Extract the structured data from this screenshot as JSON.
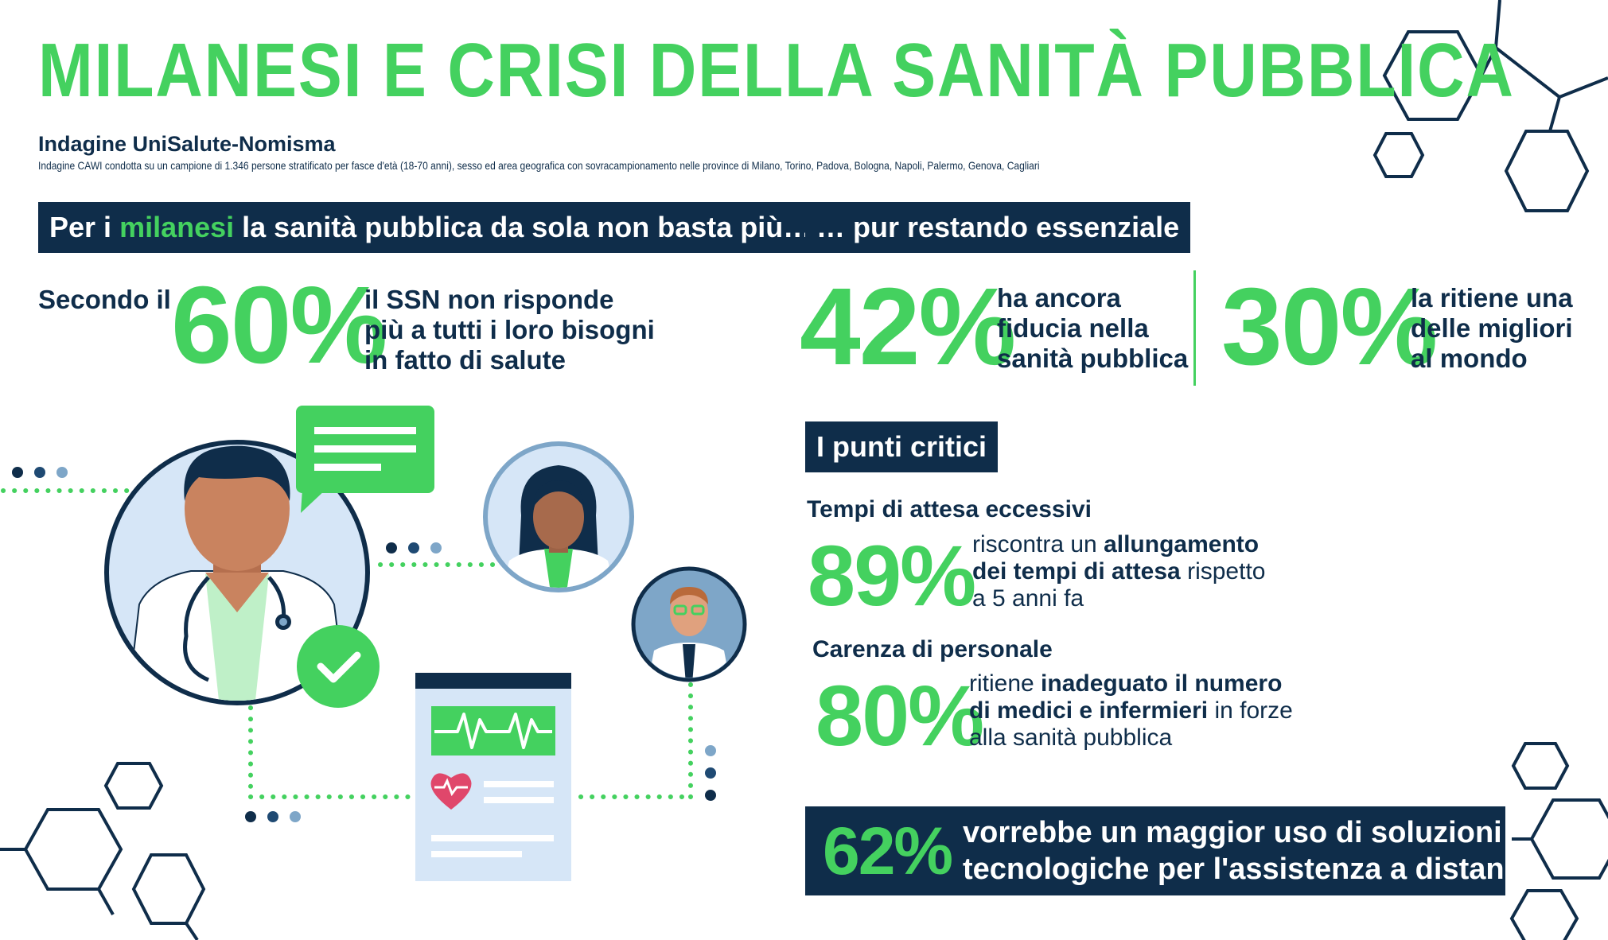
{
  "header": {
    "title": "MILANESI E CRISI DELLA SANITÀ PUBBLICA",
    "subtitle": "Indagine UniSalute-Nomisma",
    "methodology": "Indagine CAWI condotta su un campione di 1.346 persone stratificato per fasce d'età (18-70 anni), sesso ed area geografica con sovracampionamento nelle province di Milano, Torino, Padova, Bologna, Napoli, Palermo, Genova, Cagliari"
  },
  "left_section": {
    "banner_prefix": "Per i ",
    "banner_highlight": "milanesi",
    "banner_suffix": " la sanità pubblica da sola non basta più…",
    "stat_intro": "Secondo il",
    "stat_value": "60%",
    "stat_text_line1": "il SSN non risponde",
    "stat_text_line2": "più a tutti i loro bisogni",
    "stat_text_line3": "in fatto di salute"
  },
  "right_section": {
    "banner": "… pur restando essenziale",
    "stat1_value": "42%",
    "stat1_line1": "ha ancora",
    "stat1_line2": "fiducia nella",
    "stat1_line3": "sanità pubblica",
    "stat2_value": "30%",
    "stat2_line1": "la ritiene una",
    "stat2_line2": "delle migliori",
    "stat2_line3": "al mondo"
  },
  "critical_points": {
    "banner": "I punti critici",
    "item1_label": "Tempi di attesa eccessivi",
    "item1_value": "89%",
    "item1_line1_normal": "riscontra un ",
    "item1_line1_bold": "allungamento",
    "item1_line2_bold": "dei tempi di attesa",
    "item1_line2_normal": " rispetto",
    "item1_line3": "a 5 anni fa",
    "item2_label": "Carenza di personale",
    "item2_value": "80%",
    "item2_line1_normal": "ritiene ",
    "item2_line1_bold": "inadeguato il numero",
    "item2_line2_bold": "di medici e infermieri",
    "item2_line2_normal": " in forze",
    "item2_line3": "alla sanità pubblica"
  },
  "technology": {
    "value": "62%",
    "line1": "vorrebbe un maggior uso di soluzioni",
    "line2": "tecnologiche per l'assistenza a distanza"
  },
  "colors": {
    "green": "#44d15f",
    "navy": "#0f2d4a",
    "light_blue": "#d6e6f7",
    "steel_blue": "#7ea6c8",
    "skin": "#c9835f",
    "heart": "#e0476b"
  }
}
